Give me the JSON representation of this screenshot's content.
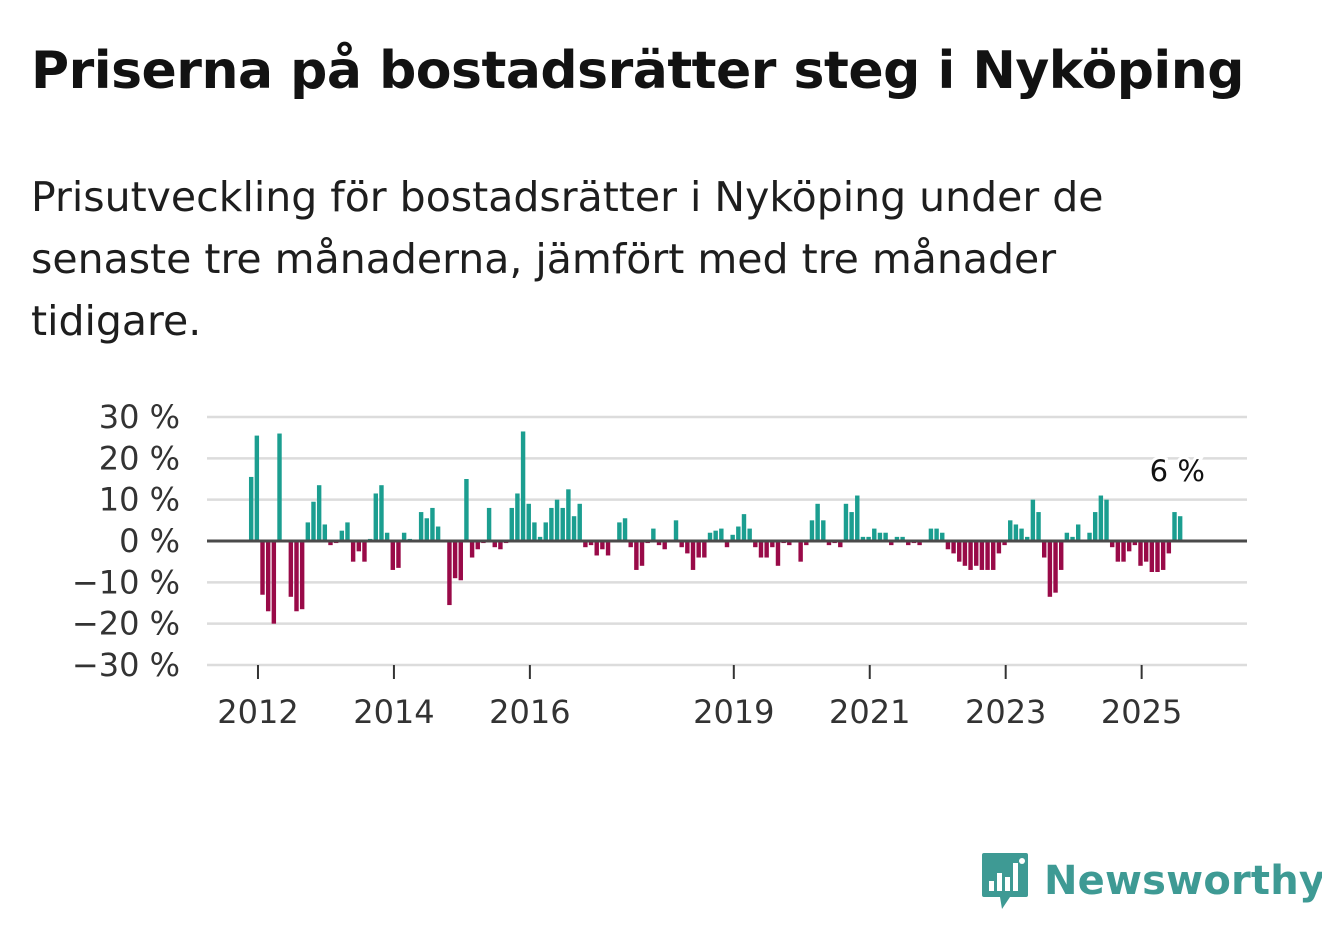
{
  "header": {
    "title": "Priserna på bostadsrätter steg i Nyköping",
    "subtitle": "Prisutveckling för bostadsrätter i Nyköping under de senaste tre månaderna, jämfört med tre månader tidigare."
  },
  "branding": {
    "name": "Newsworthy",
    "icon": "bar-chart-bubble-icon",
    "color": "#3e9a94"
  },
  "colors": {
    "positive": "#1b9e90",
    "negative": "#990a48",
    "grid": "#dcdcdc",
    "zero_line": "#4a4a4a"
  },
  "chart_data": {
    "type": "bar",
    "title": "Priserna på bostadsrätter steg i Nyköping",
    "xlabel": "",
    "ylabel": "",
    "ylim": [
      -30,
      30
    ],
    "y_ticks": [
      30,
      20,
      10,
      0,
      -10,
      -20,
      -30
    ],
    "y_tick_labels": [
      "30 %",
      "20 %",
      "10 %",
      "0 %",
      "−10 %",
      "−20 %",
      "−30 %"
    ],
    "x_ticks": [
      {
        "label": "2012",
        "x": 2012.0
      },
      {
        "label": "2014",
        "x": 2014.0
      },
      {
        "label": "2016",
        "x": 2016.0
      },
      {
        "label": "2019",
        "x": 2019.0
      },
      {
        "label": "2021",
        "x": 2021.0
      },
      {
        "label": "2023",
        "x": 2023.0
      },
      {
        "label": "2025",
        "x": 2025.0
      }
    ],
    "start_year": 2011.9,
    "months_per_year": 12,
    "xlim": [
      2011.25,
      2026.55
    ],
    "end_label": "6 %",
    "series": [
      {
        "name": "Prisutveckling",
        "values": [
          15.5,
          25.5,
          -13,
          -17,
          -20,
          26,
          0,
          -13.5,
          -17,
          -16.5,
          4.5,
          9.5,
          13.5,
          4,
          -1,
          -0.5,
          2.5,
          4.5,
          -5,
          -2.5,
          -5,
          0.5,
          11.5,
          13.5,
          2,
          -7,
          -6.5,
          2,
          0.5,
          0,
          7,
          5.5,
          8,
          3.5,
          0,
          -15.5,
          -9,
          -9.5,
          15,
          -4,
          -2,
          -0.5,
          8,
          -1.5,
          -2,
          -0.5,
          8,
          11.5,
          26.5,
          9,
          4.5,
          1,
          4.5,
          8,
          10,
          8,
          12.5,
          6,
          9,
          -1.5,
          -1,
          -3.5,
          -2,
          -3.5,
          0,
          4.5,
          5.5,
          -1.5,
          -7,
          -6,
          -0.5,
          3,
          -1,
          -2,
          0,
          5,
          -1.5,
          -3,
          -7,
          -4,
          -4,
          2,
          2.5,
          3,
          -1.5,
          1.5,
          3.5,
          6.5,
          3,
          -1.5,
          -4,
          -4,
          -1.5,
          -6,
          -0.5,
          -1,
          0,
          -5,
          -1,
          5,
          9,
          5,
          -1,
          -0.5,
          -1.5,
          9,
          7,
          11,
          1,
          1,
          3,
          2,
          2,
          -1,
          1,
          1,
          -1,
          -0.5,
          -1,
          0,
          3,
          3,
          2,
          -2,
          -3,
          -5,
          -6,
          -7,
          -6,
          -7,
          -7,
          -7,
          -3,
          -1,
          5,
          4,
          3,
          1,
          10,
          7,
          -4,
          -13.5,
          -12.5,
          -7,
          2,
          1,
          4,
          0,
          2,
          7,
          11,
          10,
          -1.5,
          -5,
          -5,
          -2.5,
          -1,
          -6,
          -5,
          -7.5,
          -7.5,
          -7,
          -3,
          7,
          6
        ]
      }
    ]
  }
}
